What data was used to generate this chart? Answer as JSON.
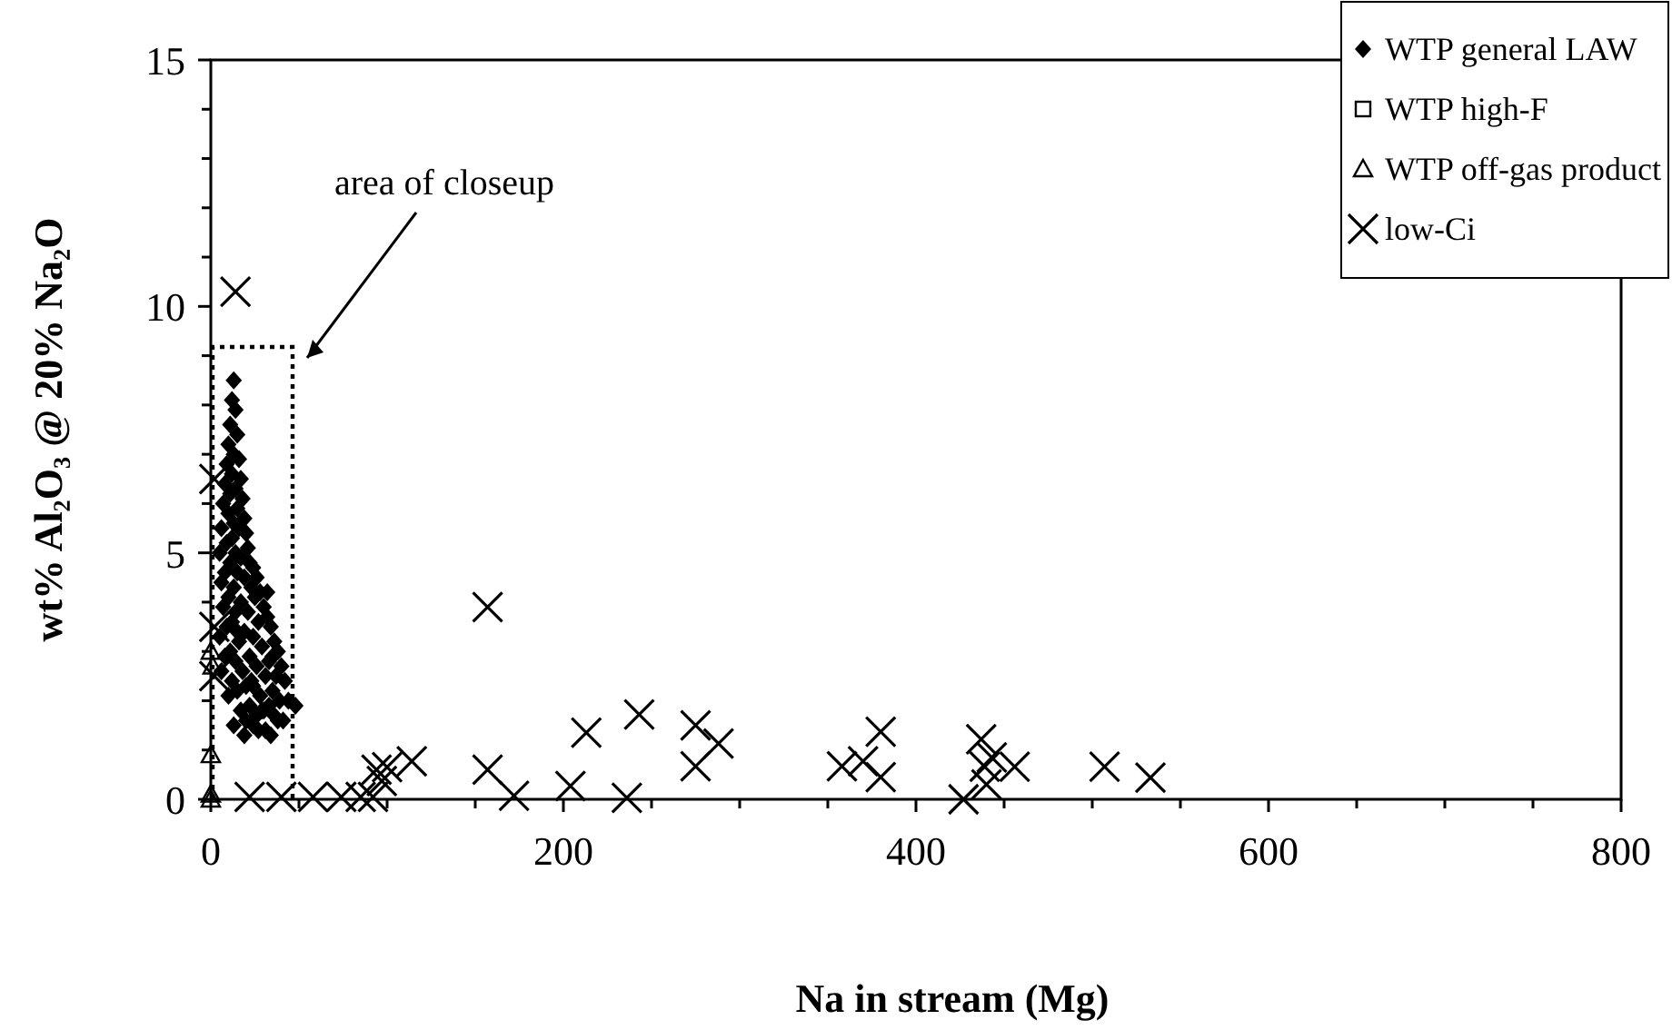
{
  "chart_data": {
    "type": "scatter",
    "xlabel": "Na in stream (Mg)",
    "ylabel": "wt% Al₂O₃ @ 20% Na₂O",
    "xlim": [
      0,
      800
    ],
    "ylim": [
      0,
      15
    ],
    "xticks": [
      0,
      {
        "value": 50,
        "label": null
      },
      {
        "value": 100,
        "label": null
      },
      {
        "value": 150,
        "label": null
      },
      200,
      {
        "value": 250,
        "label": null
      },
      {
        "value": 300,
        "label": null
      },
      {
        "value": 350,
        "label": null
      },
      400,
      {
        "value": 450,
        "label": null
      },
      {
        "value": 500,
        "label": null
      },
      {
        "value": 550,
        "label": null
      },
      600,
      {
        "value": 650,
        "label": null
      },
      {
        "value": 700,
        "label": null
      },
      {
        "value": 750,
        "label": null
      },
      800
    ],
    "yticks": [
      0,
      {
        "value": 1,
        "label": null
      },
      {
        "value": 2,
        "label": null
      },
      {
        "value": 3,
        "label": null
      },
      {
        "value": 4,
        "label": null
      },
      5,
      {
        "value": 6,
        "label": null
      },
      {
        "value": 7,
        "label": null
      },
      {
        "value": 8,
        "label": null
      },
      {
        "value": 9,
        "label": null
      },
      10,
      {
        "value": 11,
        "label": null
      },
      {
        "value": 12,
        "label": null
      },
      {
        "value": 13,
        "label": null
      },
      {
        "value": 14,
        "label": null
      },
      15
    ],
    "grid": false,
    "legend": "top right",
    "annotations": [
      "area of closeup"
    ],
    "series": [
      {
        "name": "WTP general LAW",
        "color": "#000000",
        "marker": "diamond",
        "x": [
          13,
          12,
          14,
          11,
          15,
          10,
          13,
          16,
          9,
          12,
          17,
          8,
          14,
          11,
          18,
          7,
          15,
          10,
          19,
          13,
          6,
          16,
          20,
          12,
          9,
          21,
          14,
          5,
          17,
          22,
          11,
          24,
          8,
          15,
          26,
          19,
          6,
          23,
          13,
          28,
          10,
          25,
          17,
          30,
          7,
          21,
          14,
          32,
          12,
          27,
          9,
          34,
          19,
          5,
          24,
          36,
          16,
          29,
          11,
          38,
          22,
          8,
          33,
          14,
          40,
          26,
          18,
          6,
          31,
          37,
          12,
          42,
          24,
          20,
          35,
          15,
          28,
          10,
          39,
          44,
          22,
          33,
          17,
          30,
          26,
          36,
          20,
          41,
          13,
          24,
          27,
          31,
          19,
          34,
          38,
          29,
          48,
          23,
          35,
          15,
          32
        ],
        "values": [
          8.5,
          8.1,
          7.9,
          7.6,
          7.4,
          7.2,
          7.0,
          6.9,
          6.8,
          6.6,
          6.5,
          6.4,
          6.3,
          6.2,
          6.1,
          6.0,
          5.9,
          5.8,
          5.7,
          5.6,
          5.5,
          5.5,
          5.4,
          5.3,
          5.2,
          5.1,
          5.0,
          5.0,
          4.9,
          4.8,
          4.8,
          4.7,
          4.6,
          4.6,
          4.5,
          4.5,
          4.4,
          4.3,
          4.3,
          4.2,
          4.1,
          4.1,
          4.0,
          3.9,
          3.9,
          3.8,
          3.8,
          3.7,
          3.6,
          3.6,
          3.5,
          3.5,
          3.4,
          3.3,
          3.3,
          3.2,
          3.2,
          3.1,
          3.0,
          3.0,
          2.9,
          2.9,
          2.8,
          2.8,
          2.7,
          2.7,
          2.6,
          2.6,
          2.5,
          2.5,
          2.4,
          2.4,
          2.3,
          2.3,
          2.2,
          2.2,
          2.1,
          2.1,
          2.0,
          2.0,
          1.9,
          1.9,
          1.8,
          1.8,
          1.7,
          1.7,
          1.6,
          1.6,
          1.5,
          1.5,
          1.4,
          1.4,
          1.3,
          1.3,
          1.6,
          1.8,
          1.9,
          2.4,
          2.9,
          3.4,
          4.2
        ]
      },
      {
        "name": "WTP high-F",
        "color": "#000000",
        "marker": "square"
      },
      {
        "name": "WTP off-gas product",
        "color": "#000000",
        "marker": "triangle",
        "x": [
          0,
          0,
          0,
          1,
          0
        ],
        "values": [
          0,
          0.1,
          0.9,
          2.7,
          3.0
        ]
      },
      {
        "name": "low-Ci",
        "color": "#000000",
        "marker": "cross",
        "x": [
          14,
          2,
          2,
          2,
          22,
          40,
          58,
          74,
          85,
          92,
          94,
          97,
          100,
          114,
          157,
          157,
          172,
          204,
          213,
          236,
          243,
          275,
          275,
          288,
          358,
          370,
          380,
          380,
          427,
          437,
          439,
          440,
          443,
          456,
          507,
          533
        ],
        "values": [
          10.3,
          2.5,
          3.5,
          6.5,
          0.05,
          0.05,
          0.05,
          0.05,
          0.05,
          0.05,
          0.6,
          0.37,
          0.65,
          0.77,
          3.9,
          0.6,
          0.07,
          0.27,
          1.35,
          0.03,
          1.72,
          1.5,
          0.67,
          1.13,
          0.67,
          0.77,
          1.37,
          0.45,
          0,
          1.22,
          0.66,
          0.3,
          0.85,
          0.66,
          0.66,
          0.44
        ]
      }
    ]
  }
}
